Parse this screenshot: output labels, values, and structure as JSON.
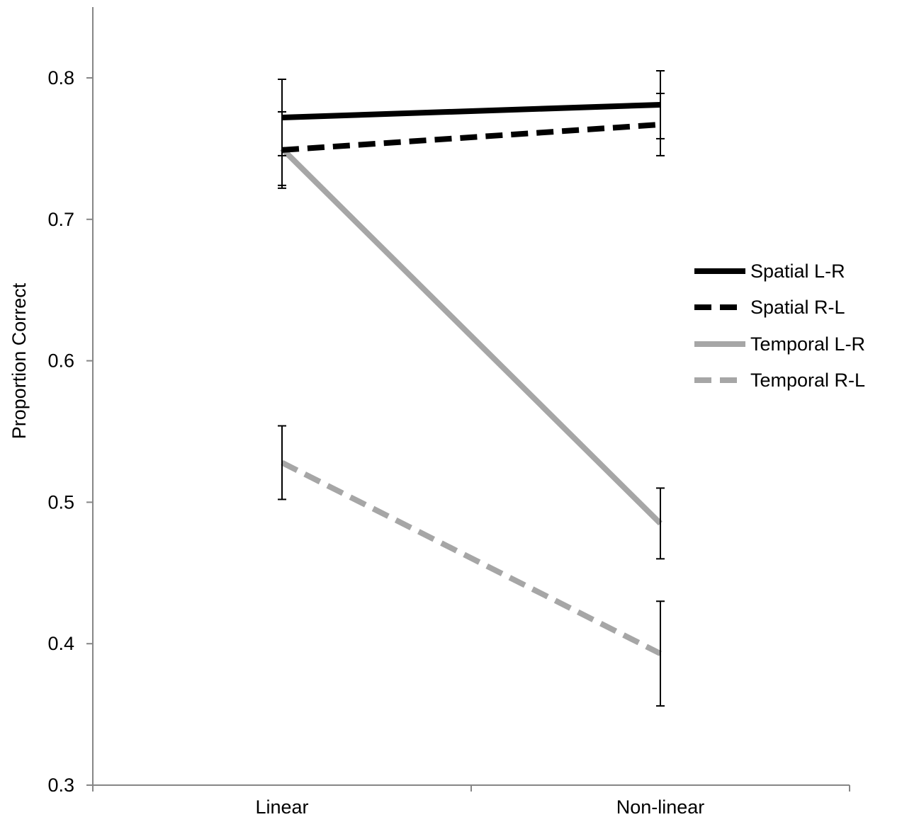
{
  "chart_data": {
    "type": "line",
    "title": "",
    "xlabel": "",
    "ylabel": "Proportion Correct",
    "categories": [
      "Linear",
      "Non-linear"
    ],
    "ylim": [
      0.3,
      0.8
    ],
    "y_ticks": [
      "0.3",
      "0.4",
      "0.5",
      "0.6",
      "0.7",
      "0.8"
    ],
    "grid": false,
    "legend_position": "right",
    "series": [
      {
        "name": "Spatial L-R",
        "values": [
          0.772,
          0.781
        ],
        "error": [
          0.027,
          0.024
        ],
        "color": "#000000",
        "dashed": false
      },
      {
        "name": "Spatial R-L",
        "values": [
          0.749,
          0.767
        ],
        "error": [
          0.027,
          0.022
        ],
        "color": "#000000",
        "dashed": true
      },
      {
        "name": "Temporal L-R",
        "values": [
          0.75,
          0.485
        ],
        "error": [
          0.026,
          0.025
        ],
        "color": "#a6a6a6",
        "dashed": false
      },
      {
        "name": "Temporal R-L",
        "values": [
          0.528,
          0.393
        ],
        "error": [
          0.026,
          0.037
        ],
        "color": "#a6a6a6",
        "dashed": true
      }
    ]
  }
}
